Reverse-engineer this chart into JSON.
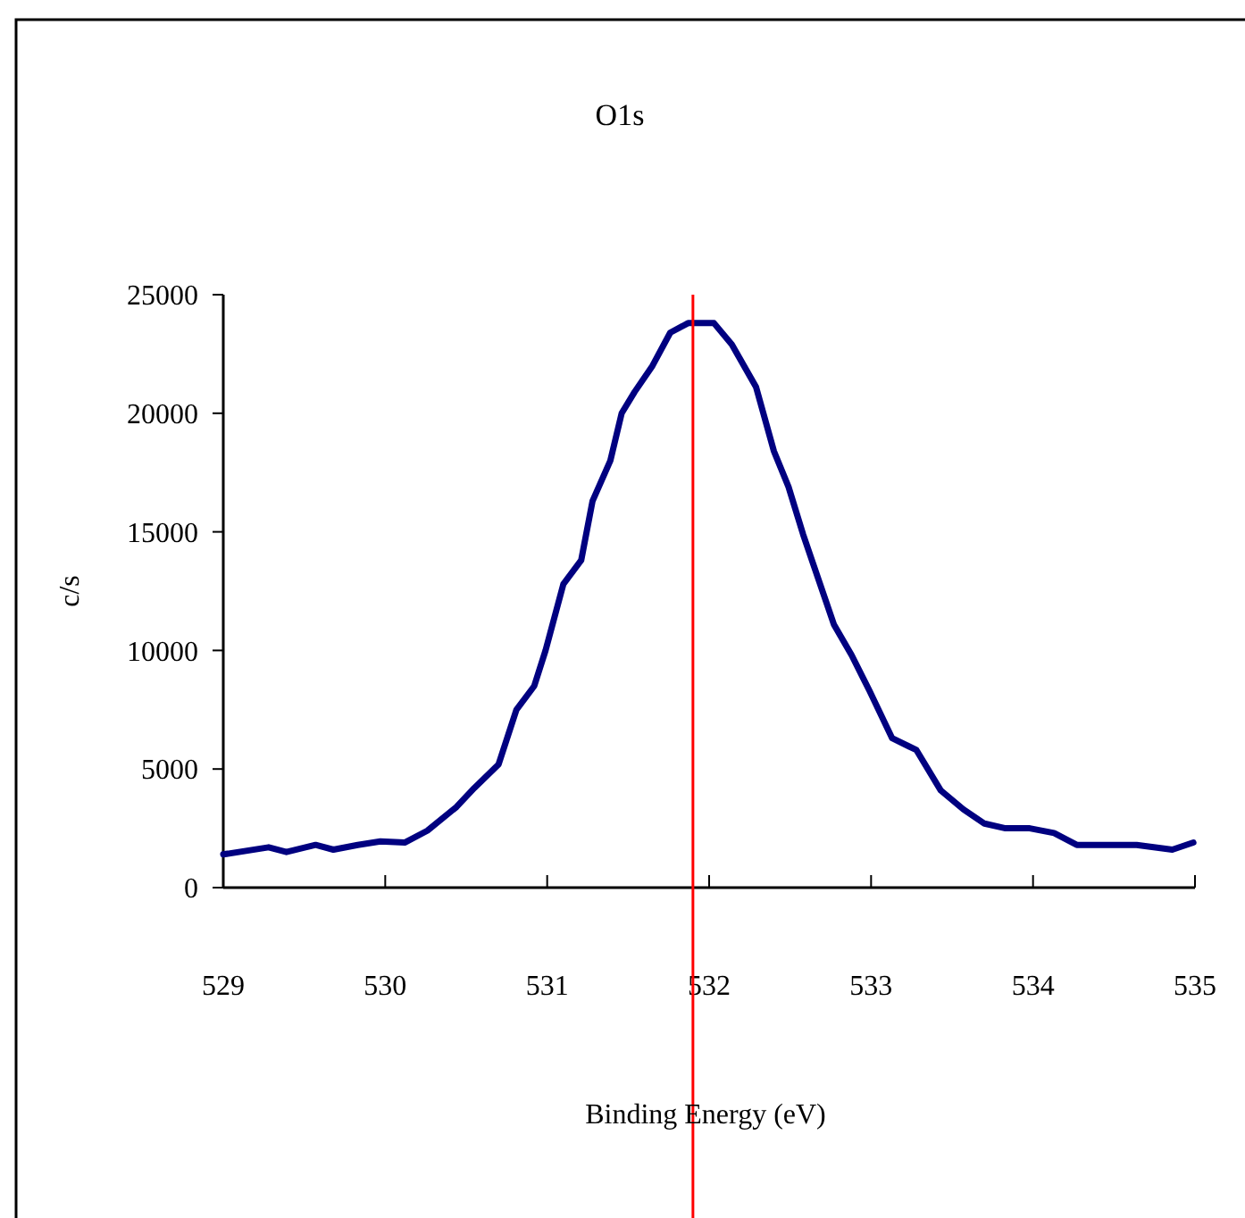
{
  "chart_data": {
    "type": "line",
    "title": "O1s",
    "xlabel": "Binding Energy (eV)",
    "ylabel": "c/s",
    "xlim": [
      529,
      535
    ],
    "xticks": [
      529,
      530,
      531,
      532,
      533,
      534,
      535
    ],
    "ylim": [
      0,
      25000
    ],
    "yticks": [
      0,
      5000,
      10000,
      15000,
      20000,
      25000
    ],
    "grid": false,
    "marker": "none",
    "line_style": "solid",
    "series": [
      {
        "color": "#000080",
        "x": [
          529,
          529.28,
          529.39,
          529.57,
          529.68,
          529.83,
          529.97,
          530.12,
          530.26,
          530.44,
          530.55,
          530.7,
          530.81,
          530.92,
          530.99,
          531.1,
          531.21,
          531.28,
          531.39,
          531.46,
          531.54,
          531.65,
          531.76,
          531.87,
          531.98,
          532.03,
          532.14,
          532.29,
          532.4,
          532.49,
          532.58,
          532.67,
          532.77,
          532.88,
          532.99,
          533.13,
          533.28,
          533.43,
          533.57,
          533.7,
          533.83,
          533.98,
          534.13,
          534.27,
          534.64,
          534.86,
          534.99
        ],
        "values": [
          1400,
          1700,
          1500,
          1800,
          1600,
          1800,
          1950,
          1900,
          2400,
          3400,
          4200,
          5200,
          7500,
          8500,
          10000,
          12800,
          13800,
          16300,
          18000,
          20000,
          20900,
          22000,
          23400,
          23800,
          23800,
          23800,
          22900,
          21100,
          18400,
          16900,
          14900,
          13100,
          11100,
          9800,
          8300,
          6300,
          5800,
          4100,
          3300,
          2700,
          2500,
          2500,
          2300,
          1800,
          1800,
          1600,
          1900
        ]
      }
    ],
    "ref_lines": [
      {
        "axis": "x",
        "value": 531.9,
        "color": "#ff0000"
      }
    ]
  }
}
